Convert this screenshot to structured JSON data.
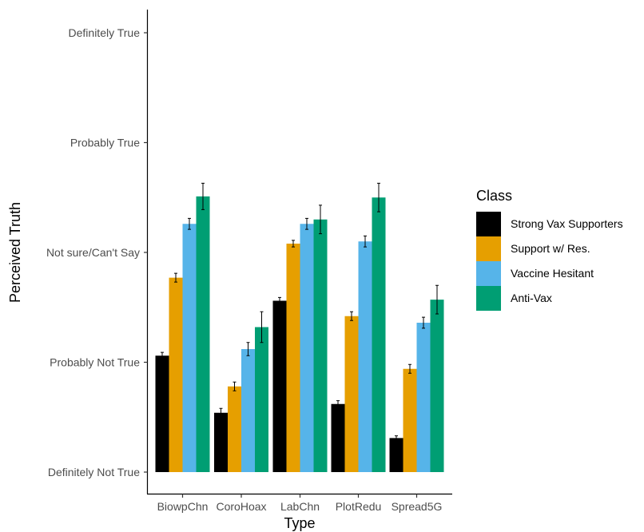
{
  "chart_data": {
    "type": "bar",
    "xlabel": "Type",
    "ylabel": "Perceived Truth",
    "categories": [
      "BiowpChn",
      "CoroHoax",
      "LabChn",
      "PlotRedu",
      "Spread5G"
    ],
    "y_ticks": [
      {
        "value": 1,
        "label": "Definitely Not True"
      },
      {
        "value": 2,
        "label": "Probably Not True"
      },
      {
        "value": 3,
        "label": "Not sure/Can't Say"
      },
      {
        "value": 4,
        "label": "Probably True"
      },
      {
        "value": 5,
        "label": "Definitely True"
      }
    ],
    "ylim": [
      1,
      5
    ],
    "grid": false,
    "legend": {
      "title": "Class",
      "placement": "right"
    },
    "series": [
      {
        "name": "Strong Vax Supporters",
        "color": "#000000",
        "values": [
          2.06,
          1.54,
          2.56,
          1.62,
          1.31
        ],
        "errors": [
          0.03,
          0.04,
          0.03,
          0.03,
          0.02
        ]
      },
      {
        "name": "Support w/ Res.",
        "color": "#E69F00",
        "values": [
          2.77,
          1.78,
          3.08,
          2.42,
          1.94
        ],
        "errors": [
          0.04,
          0.04,
          0.03,
          0.04,
          0.04
        ]
      },
      {
        "name": "Vaccine Hesitant",
        "color": "#56B4E9",
        "values": [
          3.26,
          2.12,
          3.26,
          3.1,
          2.36
        ],
        "errors": [
          0.05,
          0.06,
          0.05,
          0.05,
          0.05
        ]
      },
      {
        "name": "Anti-Vax",
        "color": "#009E73",
        "values": [
          3.51,
          2.32,
          3.3,
          3.5,
          2.57
        ],
        "errors": [
          0.12,
          0.14,
          0.13,
          0.13,
          0.13
        ]
      }
    ]
  }
}
